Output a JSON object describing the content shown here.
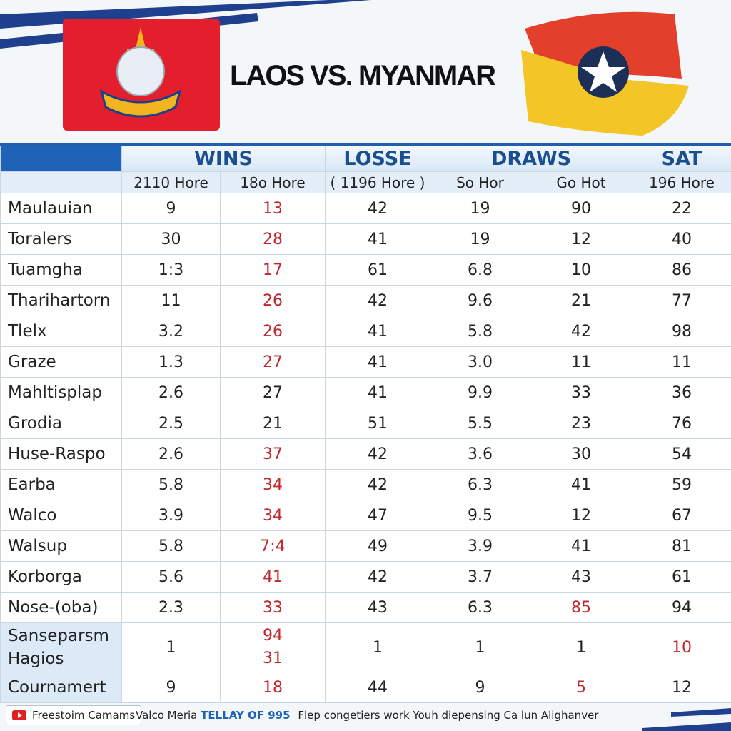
{
  "header": {
    "title": "LAOS VS. MYANMAR"
  },
  "table": {
    "groups": [
      {
        "text": "WINS",
        "span": 2
      },
      {
        "text": "LOSSE",
        "span": 1
      },
      {
        "text": "DRAWS",
        "span": 2
      },
      {
        "text": "SAT",
        "span": 1
      }
    ],
    "subheaders": [
      "2110 Hore",
      "18o Hore",
      "( 1196 Hore )",
      "So Hor",
      "Go Hot",
      "196 Hore"
    ],
    "highlight_color": "#c0282d",
    "rows": [
      {
        "label": "Maulauian",
        "cells": [
          "9",
          {
            "text": "13",
            "color": "#c0282d"
          },
          "42",
          "19",
          "90",
          "22"
        ]
      },
      {
        "label": "Toralers",
        "cells": [
          "30",
          {
            "text": "28",
            "color": "#c0282d"
          },
          "41",
          "19",
          "12",
          "40"
        ]
      },
      {
        "label": "Tuamgha",
        "cells": [
          "1:3",
          {
            "text": "17",
            "color": "#c0282d"
          },
          "61",
          "6.8",
          "10",
          "86"
        ]
      },
      {
        "label": "Tharihartorn",
        "cells": [
          "11",
          {
            "text": "26",
            "color": "#c0282d"
          },
          "42",
          "9.6",
          "21",
          "77"
        ]
      },
      {
        "label": "Tlelx",
        "cells": [
          "3.2",
          {
            "text": "26",
            "color": "#c0282d"
          },
          "41",
          "5.8",
          "42",
          "98"
        ]
      },
      {
        "label": "Graze",
        "cells": [
          "1.3",
          {
            "text": "27",
            "color": "#c0282d"
          },
          "41",
          "3.0",
          "11",
          "11"
        ]
      },
      {
        "label": "Mahltisplap",
        "cells": [
          "2.6",
          "27",
          "41",
          "9.9",
          "33",
          "36"
        ]
      },
      {
        "label": "Grodia",
        "cells": [
          "2.5",
          "21",
          "51",
          "5.5",
          "23",
          "76"
        ]
      },
      {
        "label": "Huse-Raspo",
        "cells": [
          "2.6",
          {
            "text": "37",
            "color": "#c0282d"
          },
          "42",
          "3.6",
          "30",
          "54"
        ]
      },
      {
        "label": "Earba",
        "cells": [
          "5.8",
          {
            "text": "34",
            "color": "#c0282d"
          },
          "42",
          "6.3",
          "41",
          "59"
        ]
      },
      {
        "label": "Walco",
        "cells": [
          "3.9",
          {
            "text": "34",
            "color": "#c0282d"
          },
          "47",
          "9.5",
          "12",
          "67"
        ]
      },
      {
        "label": "Walsup",
        "cells": [
          "5.8",
          {
            "text": "7:4",
            "color": "#c0282d"
          },
          "49",
          "3.9",
          "41",
          "81"
        ]
      },
      {
        "label": "Korborga",
        "cells": [
          "5.6",
          {
            "text": "41",
            "color": "#c0282d"
          },
          "42",
          "3.7",
          "43",
          "61"
        ]
      },
      {
        "label": "Nose-(oba)",
        "cells": [
          "2.3",
          {
            "text": "33",
            "color": "#c0282d"
          },
          "43",
          "6.3",
          {
            "text": "85",
            "color": "#c0282d"
          },
          "94"
        ]
      },
      {
        "label": {
          "lines": [
            "Sanseparsm",
            "Hagios"
          ]
        },
        "cells": [
          "1",
          {
            "lines": [
              "94",
              "31"
            ],
            "color": "#c0282d"
          },
          "1",
          "1",
          "1",
          {
            "text": "10",
            "color": "#c0282d"
          }
        ]
      },
      {
        "label": "Cournamert",
        "cells": [
          "9",
          {
            "text": "18",
            "color": "#c0282d"
          },
          "44",
          "9",
          {
            "text": "5",
            "color": "#c0282d"
          },
          "12"
        ]
      }
    ]
  },
  "footer": {
    "button": "Freestoim Camams",
    "source": "Valco Meria",
    "brand": "TELLAY OF 995",
    "caption": "Flep congetiers work Youh diepensing Ca lun Alighanver"
  }
}
